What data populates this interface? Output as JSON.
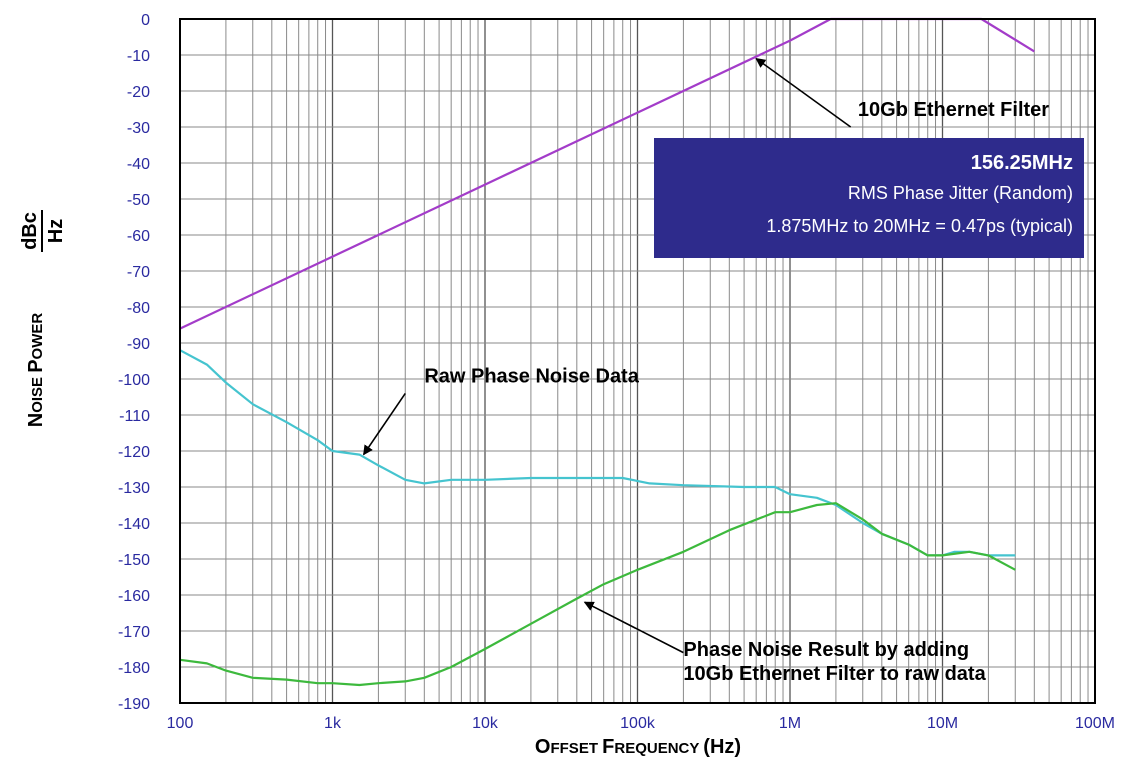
{
  "chart_data": {
    "type": "line",
    "x_scale": "log",
    "xlim": [
      100,
      100000000
    ],
    "ylim": [
      -190,
      0
    ],
    "xlabel_parts": [
      "O",
      "FFSET ",
      "F",
      "REQUENCY ",
      "(Hz)"
    ],
    "ylabel_parts": [
      "N",
      "OISE ",
      "P",
      "OWER"
    ],
    "ylabel_unit": {
      "numerator": "dBc",
      "denominator": "Hz"
    },
    "x_ticks": [
      {
        "value": 100,
        "label": "100"
      },
      {
        "value": 1000,
        "label": "1k"
      },
      {
        "value": 10000,
        "label": "10k"
      },
      {
        "value": 100000,
        "label": "100k"
      },
      {
        "value": 1000000,
        "label": "1M"
      },
      {
        "value": 10000000,
        "label": "10M"
      },
      {
        "value": 100000000,
        "label": "100M"
      }
    ],
    "y_ticks": [
      0,
      -10,
      -20,
      -30,
      -40,
      -50,
      -60,
      -70,
      -80,
      -90,
      -100,
      -110,
      -120,
      -130,
      -140,
      -150,
      -160,
      -170,
      -180,
      -190
    ],
    "grid": true,
    "series": [
      {
        "id": "filter",
        "color": "#a33cc9",
        "points": [
          [
            100,
            -86
          ],
          [
            1000,
            -66
          ],
          [
            10000,
            -46
          ],
          [
            100000,
            -26
          ],
          [
            1000000,
            -6
          ],
          [
            1850000,
            0
          ],
          [
            18000000,
            0
          ],
          [
            40000000,
            -9
          ]
        ]
      },
      {
        "id": "raw",
        "color": "#45c4cf",
        "points": [
          [
            100,
            -92
          ],
          [
            150,
            -96
          ],
          [
            200,
            -101
          ],
          [
            300,
            -107
          ],
          [
            500,
            -112
          ],
          [
            800,
            -117
          ],
          [
            1000,
            -120
          ],
          [
            1500,
            -121
          ],
          [
            2000,
            -124
          ],
          [
            3000,
            -128
          ],
          [
            4000,
            -129
          ],
          [
            6000,
            -128
          ],
          [
            10000,
            -128
          ],
          [
            20000,
            -127.5
          ],
          [
            50000,
            -127.5
          ],
          [
            80000,
            -127.5
          ],
          [
            120000,
            -129
          ],
          [
            200000,
            -129.5
          ],
          [
            500000,
            -130
          ],
          [
            800000,
            -130
          ],
          [
            1000000,
            -132
          ],
          [
            1500000,
            -133
          ],
          [
            2000000,
            -135
          ],
          [
            3000000,
            -140
          ],
          [
            4000000,
            -143
          ],
          [
            6000000,
            -146
          ],
          [
            8000000,
            -149
          ],
          [
            10000000,
            -149
          ],
          [
            12000000,
            -148
          ],
          [
            15000000,
            -148
          ],
          [
            20000000,
            -149
          ],
          [
            30000000,
            -149
          ]
        ]
      },
      {
        "id": "result",
        "color": "#3db93d",
        "points": [
          [
            100,
            -178
          ],
          [
            150,
            -179
          ],
          [
            200,
            -181
          ],
          [
            300,
            -183
          ],
          [
            500,
            -183.5
          ],
          [
            800,
            -184.5
          ],
          [
            1000,
            -184.5
          ],
          [
            1500,
            -185
          ],
          [
            2000,
            -184.5
          ],
          [
            3000,
            -184
          ],
          [
            4000,
            -183
          ],
          [
            6000,
            -180
          ],
          [
            10000,
            -175
          ],
          [
            20000,
            -168
          ],
          [
            40000,
            -161
          ],
          [
            60000,
            -157
          ],
          [
            100000,
            -153
          ],
          [
            200000,
            -148
          ],
          [
            400000,
            -142
          ],
          [
            800000,
            -137
          ],
          [
            1000000,
            -137
          ],
          [
            1500000,
            -135
          ],
          [
            2000000,
            -134.5
          ],
          [
            3000000,
            -139
          ],
          [
            4000000,
            -143
          ],
          [
            6000000,
            -146
          ],
          [
            8000000,
            -149
          ],
          [
            10000000,
            -149
          ],
          [
            15000000,
            -148
          ],
          [
            20000000,
            -149
          ],
          [
            30000000,
            -153
          ]
        ]
      }
    ],
    "annotations": [
      {
        "id": "filter-label",
        "text": "10Gb Ethernet Filter",
        "x": 50000000,
        "y": -27,
        "anchor": "end",
        "arrow_from": [
          2500000,
          -30
        ],
        "arrow_to": [
          600000,
          -11
        ]
      },
      {
        "id": "raw-label",
        "lines": [
          "Raw Phase Noise Data"
        ],
        "x": 4000,
        "y": -101,
        "anchor": "start",
        "arrow_from": [
          3000,
          -104
        ],
        "arrow_to": [
          1600,
          -121
        ]
      },
      {
        "id": "result-label",
        "lines": [
          "Phase Noise Result by adding",
          "10Gb Ethernet Filter to raw data"
        ],
        "x": 200000,
        "y": -177,
        "anchor": "start",
        "arrow_from": [
          200000,
          -176
        ],
        "arrow_to": [
          45000,
          -162
        ]
      }
    ],
    "info_box": {
      "title": "156.25MHz",
      "line1": "RMS Phase Jitter (Random)",
      "line2": "1.875MHz to 20MHz = 0.47ps (typical)",
      "bg_color": "#2e2b8c"
    }
  }
}
